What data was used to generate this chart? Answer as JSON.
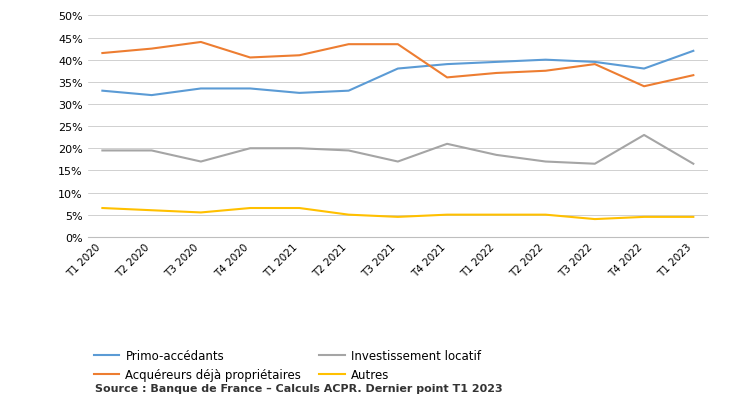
{
  "x_labels": [
    "T1 2020",
    "T2 2020",
    "T3 2020",
    "T4 2020",
    "T1 2021",
    "T2 2021",
    "T3 2021",
    "T4 2021",
    "T1 2022",
    "T2 2022",
    "T3 2022",
    "T4 2022",
    "T1 2023"
  ],
  "primo": [
    33,
    32,
    33.5,
    33.5,
    32.5,
    33,
    38,
    39,
    39.5,
    40,
    39.5,
    38,
    42
  ],
  "acquereurs": [
    41.5,
    42.5,
    44,
    40.5,
    41,
    43.5,
    43.5,
    36,
    37,
    37.5,
    39,
    34,
    36.5
  ],
  "investissement": [
    19.5,
    19.5,
    17,
    20,
    20,
    19.5,
    17,
    21,
    18.5,
    17,
    16.5,
    23,
    16.5
  ],
  "autres": [
    6.5,
    6,
    5.5,
    6.5,
    6.5,
    5,
    4.5,
    5,
    5,
    5,
    4,
    4.5,
    4.5
  ],
  "colors": {
    "primo": "#5B9BD5",
    "acquereurs": "#ED7D31",
    "investissement": "#A5A5A5",
    "autres": "#FFC000"
  },
  "legend_labels": {
    "primo": "Primo-accédants",
    "acquereurs": "Acquéreurs déjà propriétaires",
    "investissement": "Investissement locatif",
    "autres": "Autres"
  },
  "ylim": [
    0,
    50
  ],
  "yticks": [
    0,
    5,
    10,
    15,
    20,
    25,
    30,
    35,
    40,
    45,
    50
  ],
  "source_text": "Source : Banque de France – Calculs ACPR. Dernier point T1 2023",
  "background_color": "#FFFFFF",
  "grid_color": "#BEBEBE"
}
